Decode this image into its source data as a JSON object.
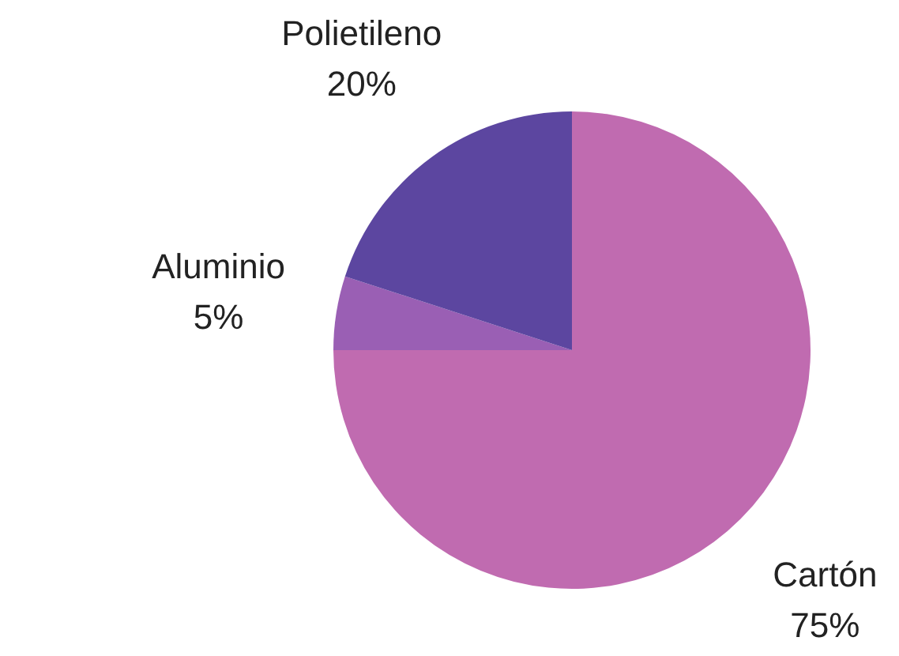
{
  "chart_data": {
    "type": "pie",
    "categories": [
      "Cartón",
      "Aluminio",
      "Polietileno"
    ],
    "values": [
      75,
      5,
      20
    ],
    "colors": [
      "#c06bb0",
      "#9a5fb4",
      "#5c46a0"
    ],
    "value_labels": [
      "75%",
      "5%",
      "20%"
    ],
    "legend": false
  }
}
